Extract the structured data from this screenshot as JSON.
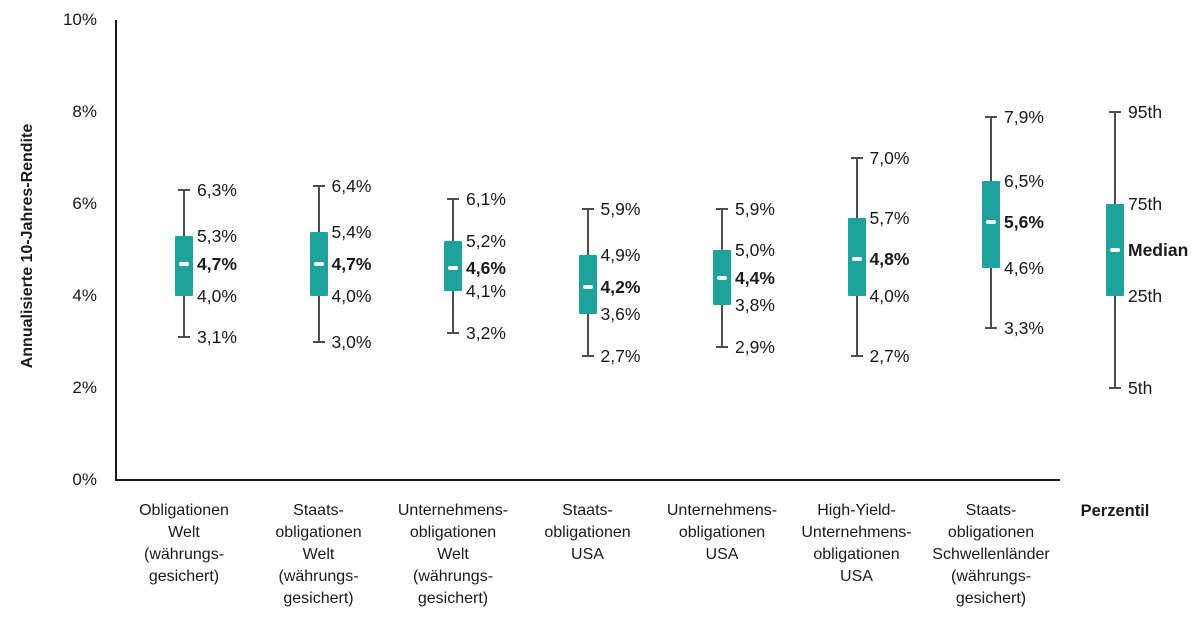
{
  "chart_data": {
    "type": "boxplot",
    "title": "",
    "ylabel": "Annualisierte 10-Jahres-Rendite",
    "ylim": [
      0,
      10
    ],
    "grid": false,
    "y_ticks": [
      {
        "value": 0,
        "label": "0%"
      },
      {
        "value": 2,
        "label": "2%"
      },
      {
        "value": 4,
        "label": "4%"
      },
      {
        "value": 6,
        "label": "6%"
      },
      {
        "value": 8,
        "label": "8%"
      },
      {
        "value": 10,
        "label": "10%"
      }
    ],
    "series": [
      {
        "name": "Obligationen Welt (währungsgesichert)",
        "label_lines": [
          "Obligationen",
          "Welt",
          "(währungs-",
          "gesichert)"
        ],
        "p5": 3.1,
        "p25": 4.0,
        "median": 4.7,
        "p75": 5.3,
        "p95": 6.3,
        "value_labels": {
          "p95": "6,3%",
          "p75": "5,3%",
          "median": "4,7%",
          "p25": "4,0%",
          "p5": "3,1%"
        }
      },
      {
        "name": "Staatsobligationen Welt (währungsgesichert)",
        "label_lines": [
          "Staats-",
          "obligationen",
          "Welt",
          "(währungs-",
          "gesichert)"
        ],
        "p5": 3.0,
        "p25": 4.0,
        "median": 4.7,
        "p75": 5.4,
        "p95": 6.4,
        "value_labels": {
          "p95": "6,4%",
          "p75": "5,4%",
          "median": "4,7%",
          "p25": "4,0%",
          "p5": "3,0%"
        }
      },
      {
        "name": "Unternehmensobligationen Welt (währungsgesichert)",
        "label_lines": [
          "Unternehmens-",
          "obligationen",
          "Welt",
          "(währungs-",
          "gesichert)"
        ],
        "p5": 3.2,
        "p25": 4.1,
        "median": 4.6,
        "p75": 5.2,
        "p95": 6.1,
        "value_labels": {
          "p95": "6,1%",
          "p75": "5,2%",
          "median": "4,6%",
          "p25": "4,1%",
          "p5": "3,2%"
        }
      },
      {
        "name": "Staatsobligationen USA",
        "label_lines": [
          "Staats-",
          "obligationen",
          "USA"
        ],
        "p5": 2.7,
        "p25": 3.6,
        "median": 4.2,
        "p75": 4.9,
        "p95": 5.9,
        "value_labels": {
          "p95": "5,9%",
          "p75": "4,9%",
          "median": "4,2%",
          "p25": "3,6%",
          "p5": "2,7%"
        }
      },
      {
        "name": "Unternehmensobligationen USA",
        "label_lines": [
          "Unternehmens-",
          "obligationen",
          "USA"
        ],
        "p5": 2.9,
        "p25": 3.8,
        "median": 4.4,
        "p75": 5.0,
        "p95": 5.9,
        "value_labels": {
          "p95": "5,9%",
          "p75": "5,0%",
          "median": "4,4%",
          "p25": "3,8%",
          "p5": "2,9%"
        }
      },
      {
        "name": "High-Yield-Unternehmensobligationen USA",
        "label_lines": [
          "High-Yield-",
          "Unternehmens-",
          "obligationen",
          "USA"
        ],
        "p5": 2.7,
        "p25": 4.0,
        "median": 4.8,
        "p75": 5.7,
        "p95": 7.0,
        "value_labels": {
          "p95": "7,0%",
          "p75": "5,7%",
          "median": "4,8%",
          "p25": "4,0%",
          "p5": "2,7%"
        }
      },
      {
        "name": "Staatsobligationen Schwellenländer (währungsgesichert)",
        "label_lines": [
          "Staats-",
          "obligationen",
          "Schwellenländer",
          "(währungs-",
          "gesichert)"
        ],
        "p5": 3.3,
        "p25": 4.6,
        "median": 5.6,
        "p75": 6.5,
        "p95": 7.9,
        "value_labels": {
          "p95": "7,9%",
          "p75": "6,5%",
          "median": "5,6%",
          "p25": "4,6%",
          "p5": "3,3%"
        }
      }
    ],
    "percentile_legend": {
      "title": "Perzentil",
      "markers": [
        {
          "label": "95th",
          "value": 8,
          "role": "p95",
          "bold": false
        },
        {
          "label": "75th",
          "value": 6,
          "role": "p75",
          "bold": false
        },
        {
          "label": "Median",
          "value": 5,
          "role": "median",
          "bold": true
        },
        {
          "label": "25th",
          "value": 4,
          "role": "p25",
          "bold": false
        },
        {
          "label": "5th",
          "value": 2,
          "role": "p5",
          "bold": false
        }
      ]
    },
    "colors": {
      "box": "#1FA29B",
      "median_dash": "#FFFFFF",
      "whisker": "#4D4D4D",
      "axis": "#1A1A1A",
      "text": "#1A1A1A"
    }
  }
}
